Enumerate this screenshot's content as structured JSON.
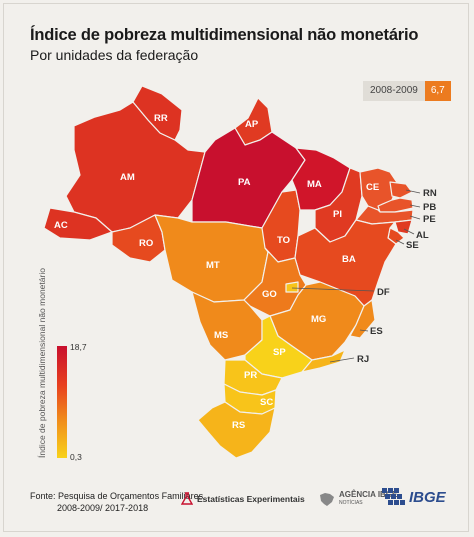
{
  "title": "Índice de pobreza multidimensional não monetário",
  "subtitle": "Por unidades da federação",
  "period": {
    "years": "2008-2009",
    "value": "6,7"
  },
  "legend": {
    "label": "Índice de pobreza multidimensional não monetário",
    "max": "18,7",
    "min": "0,3",
    "color_max": "#c8102e",
    "color_min": "#f8d21a"
  },
  "states": [
    {
      "code": "AM"
    },
    {
      "code": "RR"
    },
    {
      "code": "AP"
    },
    {
      "code": "PA"
    },
    {
      "code": "AC"
    },
    {
      "code": "RO"
    },
    {
      "code": "MT"
    },
    {
      "code": "TO"
    },
    {
      "code": "MA"
    },
    {
      "code": "PI"
    },
    {
      "code": "CE"
    },
    {
      "code": "RN"
    },
    {
      "code": "PB"
    },
    {
      "code": "PE"
    },
    {
      "code": "AL"
    },
    {
      "code": "SE"
    },
    {
      "code": "BA"
    },
    {
      "code": "GO"
    },
    {
      "code": "DF"
    },
    {
      "code": "MS"
    },
    {
      "code": "MG"
    },
    {
      "code": "ES"
    },
    {
      "code": "SP"
    },
    {
      "code": "RJ"
    },
    {
      "code": "PR"
    },
    {
      "code": "SC"
    },
    {
      "code": "RS"
    }
  ],
  "source": {
    "line1": "Fonte: Pesquisa de Orçamentos Familiares",
    "line2": "2008-2009/ 2017-2018"
  },
  "logos": {
    "experimental": "Estatísticas Experimentais",
    "agencia": "AGÊNCIA IBGE",
    "agencia_sub": "NOTÍCIAS",
    "ibge": "IBGE"
  }
}
